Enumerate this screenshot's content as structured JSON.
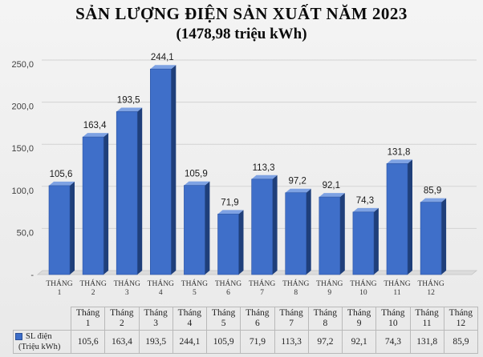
{
  "header": {
    "title": "SẢN LƯỢNG ĐIỆN SẢN XUẤT NĂM 2023",
    "subtitle": "(1478,98 triệu kWh)"
  },
  "colors": {
    "bar_front": "#3f6fc9",
    "bar_side": "#1f3f7a",
    "bar_top": "#7ea2e3"
  },
  "chart_data": {
    "type": "bar",
    "title": "SẢN LƯỢNG ĐIỆN SẢN XUẤT NĂM 2023",
    "subtitle": "(1478,98 triệu kWh)",
    "categories": [
      [
        "THÁNG",
        "1"
      ],
      [
        "THÁNG",
        "2"
      ],
      [
        "THÁNG",
        "3"
      ],
      [
        "THÁNG",
        "4"
      ],
      [
        "THÁNG",
        "5"
      ],
      [
        "THÁNG",
        "6"
      ],
      [
        "THÁNG",
        "7"
      ],
      [
        "THÁNG",
        "8"
      ],
      [
        "THÁNG",
        "9"
      ],
      [
        "THÁNG",
        "10"
      ],
      [
        "THÁNG",
        "11"
      ],
      [
        "THÁNG",
        "12"
      ]
    ],
    "values": [
      105.6,
      163.4,
      193.5,
      244.1,
      105.9,
      71.9,
      113.3,
      97.2,
      92.1,
      74.3,
      131.8,
      85.9
    ],
    "data_labels": [
      "105,6",
      "163,4",
      "193,5",
      "244,1",
      "105,9",
      "71,9",
      "113,3",
      "97,2",
      "92,1",
      "74,3",
      "131,8",
      "85,9"
    ],
    "y_ticks": [
      "-",
      "50,0",
      "100,0",
      "150,0",
      "200,0",
      "250,0"
    ],
    "ylim": [
      0,
      250
    ],
    "grid": true,
    "legend": "bottom-left (in data table)"
  },
  "table": {
    "headers": [
      [
        "Tháng",
        "1"
      ],
      [
        "Tháng",
        "2"
      ],
      [
        "Tháng",
        "3"
      ],
      [
        "Tháng",
        "4"
      ],
      [
        "Tháng",
        "5"
      ],
      [
        "Tháng",
        "6"
      ],
      [
        "Tháng",
        "7"
      ],
      [
        "Tháng",
        "8"
      ],
      [
        "Tháng",
        "9"
      ],
      [
        "Tháng",
        "10"
      ],
      [
        "Tháng",
        "11"
      ],
      [
        "Tháng",
        "12"
      ]
    ],
    "series_label_line1": "SL điện",
    "series_label_line2": "(Triệu kWh)",
    "values": [
      "105,6",
      "163,4",
      "193,5",
      "244,1",
      "105,9",
      "71,9",
      "113,3",
      "97,2",
      "92,1",
      "74,3",
      "131,8",
      "85,9"
    ]
  }
}
